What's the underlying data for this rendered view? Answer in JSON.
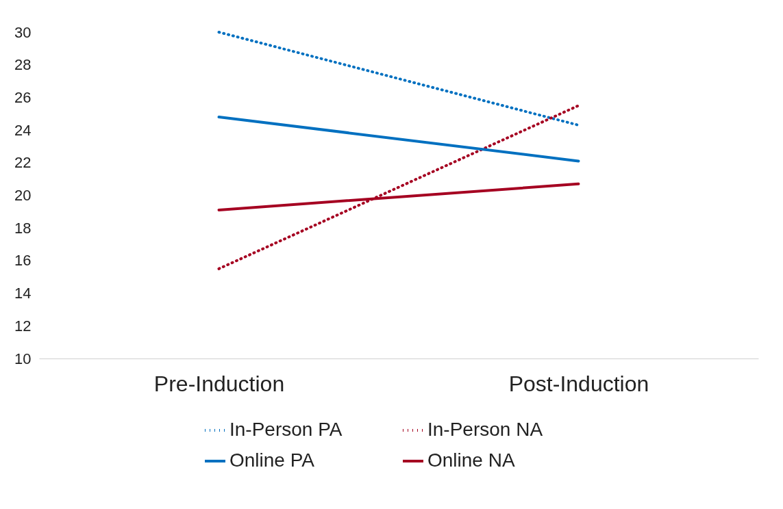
{
  "chart_data": {
    "type": "line",
    "categories": [
      "Pre-Induction",
      "Post-Induction"
    ],
    "series": [
      {
        "name": "In-Person PA",
        "color": "#0070c0",
        "line_style": "dotted",
        "values": [
          30.0,
          24.3
        ]
      },
      {
        "name": "In-Person NA",
        "color": "#a50021",
        "line_style": "dotted",
        "values": [
          15.5,
          25.5
        ]
      },
      {
        "name": "Online PA",
        "color": "#0070c0",
        "line_style": "solid",
        "values": [
          24.8,
          22.1
        ]
      },
      {
        "name": "Online NA",
        "color": "#a50021",
        "line_style": "solid",
        "values": [
          19.1,
          20.7
        ]
      }
    ],
    "ylim": [
      10,
      30
    ],
    "yticks": [
      10,
      12,
      14,
      16,
      18,
      20,
      22,
      24,
      26,
      28,
      30
    ],
    "grid": false,
    "legend": "bottom"
  }
}
